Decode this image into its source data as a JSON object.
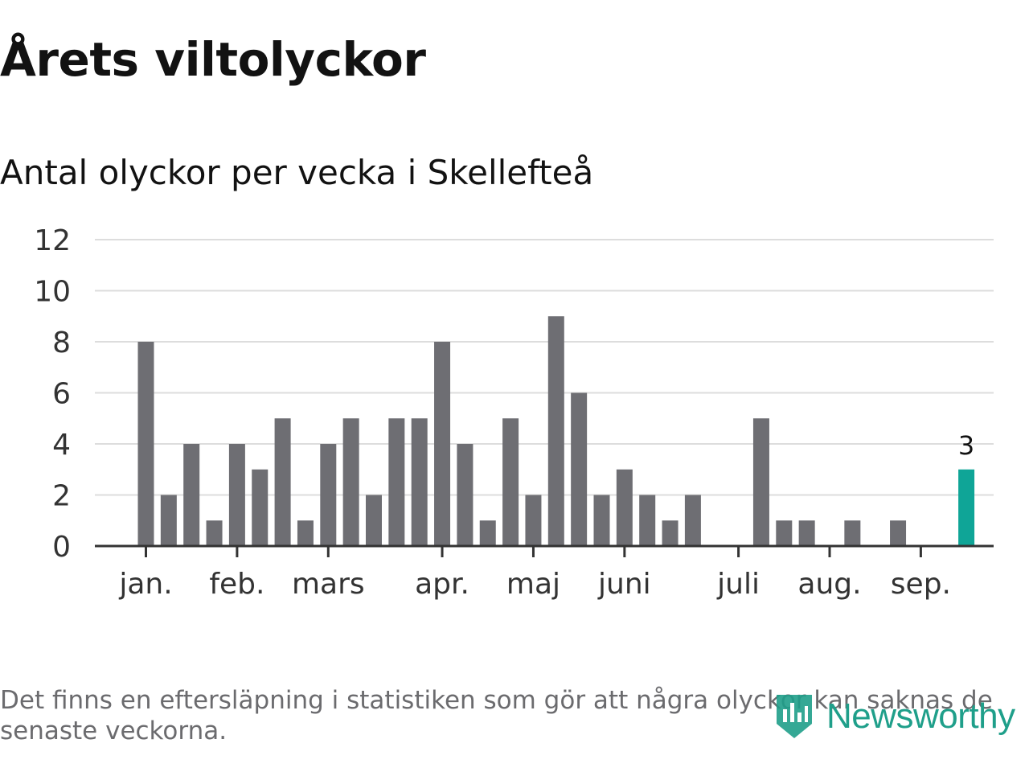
{
  "header": {
    "title": "Årets viltolyckor",
    "subtitle": "Antal olyckor per vecka i Skellefteå"
  },
  "footnote": "Det finns en eftersläpning i statistiken som gör att några olyckor kan saknas de senaste veckorna.",
  "logo": {
    "text": "Newsworthy",
    "color": "#1f9f8a"
  },
  "colors": {
    "bar": "#6e6e73",
    "highlight": "#0fa597",
    "grid": "#dddddd",
    "axis": "#333333"
  },
  "chart_data": {
    "type": "bar",
    "title": "Antal olyckor per vecka i Skellefteå",
    "xlabel": "",
    "ylabel": "",
    "ylim": [
      0,
      12
    ],
    "yticks": [
      0,
      2,
      4,
      6,
      8,
      10,
      12
    ],
    "grid": true,
    "x": [
      1,
      2,
      3,
      4,
      5,
      6,
      7,
      8,
      9,
      10,
      11,
      12,
      13,
      14,
      15,
      16,
      17,
      18,
      19,
      20,
      21,
      22,
      23,
      24,
      25,
      26,
      27,
      28,
      29,
      30,
      31,
      32,
      33,
      34,
      35,
      36,
      37,
      38,
      39,
      40,
      41
    ],
    "values": [
      8,
      2,
      4,
      1,
      4,
      3,
      5,
      1,
      4,
      5,
      2,
      5,
      5,
      8,
      4,
      1,
      5,
      2,
      9,
      6,
      2,
      3,
      2,
      1,
      2,
      0,
      0,
      5,
      1,
      1,
      0,
      1,
      0,
      1,
      0,
      0,
      3,
      0,
      0,
      0,
      0
    ],
    "highlight_index": 36,
    "highlight_label": "3",
    "x_ticks": [
      {
        "x": 1,
        "label": "jan."
      },
      {
        "x": 5,
        "label": "feb."
      },
      {
        "x": 9,
        "label": "mars"
      },
      {
        "x": 14,
        "label": "apr."
      },
      {
        "x": 18,
        "label": "maj"
      },
      {
        "x": 22,
        "label": "juni"
      },
      {
        "x": 27,
        "label": "juli"
      },
      {
        "x": 31,
        "label": "aug."
      },
      {
        "x": 35,
        "label": "sep."
      }
    ]
  }
}
